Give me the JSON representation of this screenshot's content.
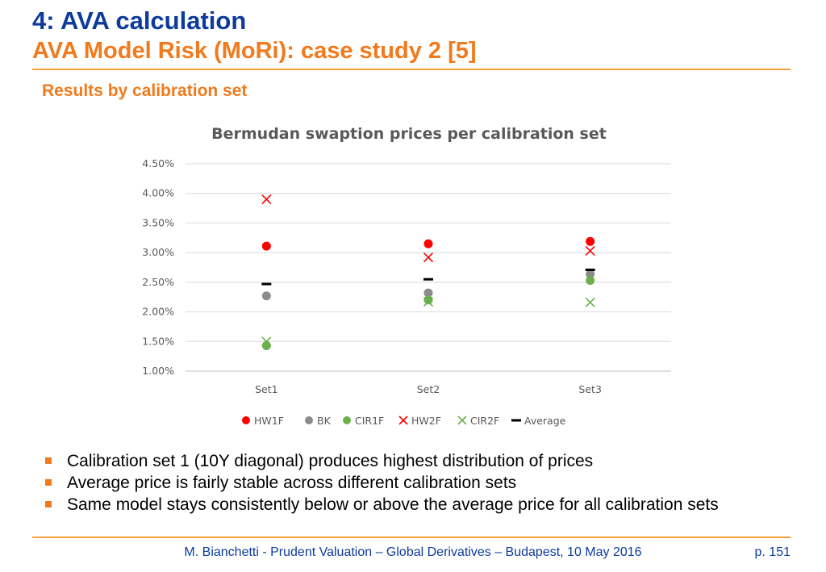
{
  "header": {
    "title": "4: AVA calculation",
    "subtitle": "AVA Model Risk (MoRi): case study 2 [5]"
  },
  "section_heading": "Results by calibration set",
  "colors": {
    "title_blue": "#0d3b9c",
    "accent_orange": "#f07a1c",
    "rule_orange": "#f2a13c",
    "hw1f": "#ff0000",
    "bk": "#8c8c8c",
    "cir1f": "#6ab04c",
    "hw2f": "#ff0000",
    "cir2f": "#6ab04c",
    "average": "#000000"
  },
  "chart_data": {
    "type": "scatter",
    "title": "Bermudan swaption prices per calibration set",
    "xlabel": "",
    "ylabel": "",
    "categories": [
      "Set1",
      "Set2",
      "Set3"
    ],
    "ylim": [
      0.01,
      0.045
    ],
    "yticks": [
      "1.00%",
      "1.50%",
      "2.00%",
      "2.50%",
      "3.00%",
      "3.50%",
      "4.00%",
      "4.50%"
    ],
    "grid": true,
    "legend_position": "bottom",
    "series": [
      {
        "name": "HW1F",
        "marker": "circle",
        "color": "#ff0000",
        "values": [
          0.0311,
          0.0315,
          0.0319
        ]
      },
      {
        "name": "BK",
        "marker": "circle",
        "color": "#8c8c8c",
        "values": [
          0.0227,
          0.0232,
          0.0264
        ]
      },
      {
        "name": "CIR1F",
        "marker": "circle",
        "color": "#6ab04c",
        "values": [
          0.0143,
          0.022,
          0.0253
        ]
      },
      {
        "name": "HW2F",
        "marker": "x",
        "color": "#ff0000",
        "values": [
          0.039,
          0.0292,
          0.0303
        ]
      },
      {
        "name": "CIR2F",
        "marker": "x",
        "color": "#6ab04c",
        "values": [
          0.015,
          0.0217,
          0.0216
        ]
      },
      {
        "name": "Average",
        "marker": "dash",
        "color": "#000000",
        "values": [
          0.0247,
          0.0255,
          0.0271
        ]
      }
    ]
  },
  "bullets": [
    "Calibration set 1 (10Y diagonal) produces highest distribution of prices",
    "Average price is fairly stable across different calibration sets",
    "Same model stays consistently below or above the average price for all calibration sets"
  ],
  "footer": {
    "text": "M. Bianchetti - Prudent Valuation – Global Derivatives – Budapest, 10 May 2016",
    "page": "p. 151"
  }
}
